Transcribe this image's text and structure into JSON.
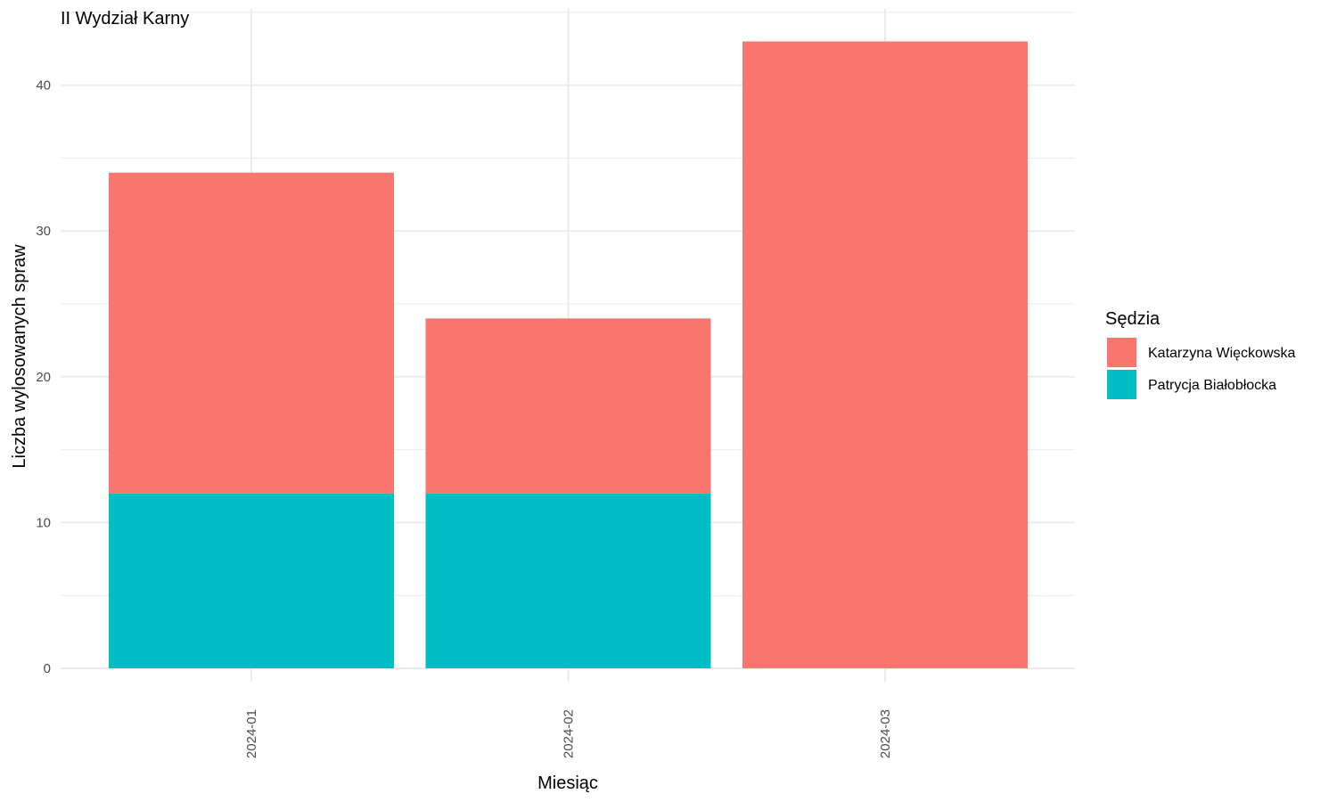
{
  "chart_data": {
    "type": "bar",
    "stacked": true,
    "title": "II Wydział Karny",
    "xlabel": "Miesiąc",
    "ylabel": "Liczba wylosowanych spraw",
    "categories": [
      "2024-01",
      "2024-02",
      "2024-03"
    ],
    "series": [
      {
        "name": "Patrycja Białobłocka",
        "values": [
          12,
          12,
          0
        ],
        "color": "#00BFC4"
      },
      {
        "name": "Katarzyna Więckowska",
        "values": [
          22,
          12,
          43
        ],
        "color": "#F8766D"
      }
    ],
    "ylim": [
      0,
      45
    ],
    "yticks": [
      0,
      10,
      20,
      30,
      40
    ],
    "grid": true,
    "legend": {
      "title": "Sędzia",
      "placement": "right",
      "entries": [
        "Katarzyna Więckowska",
        "Patrycja Białobłocka"
      ]
    }
  }
}
